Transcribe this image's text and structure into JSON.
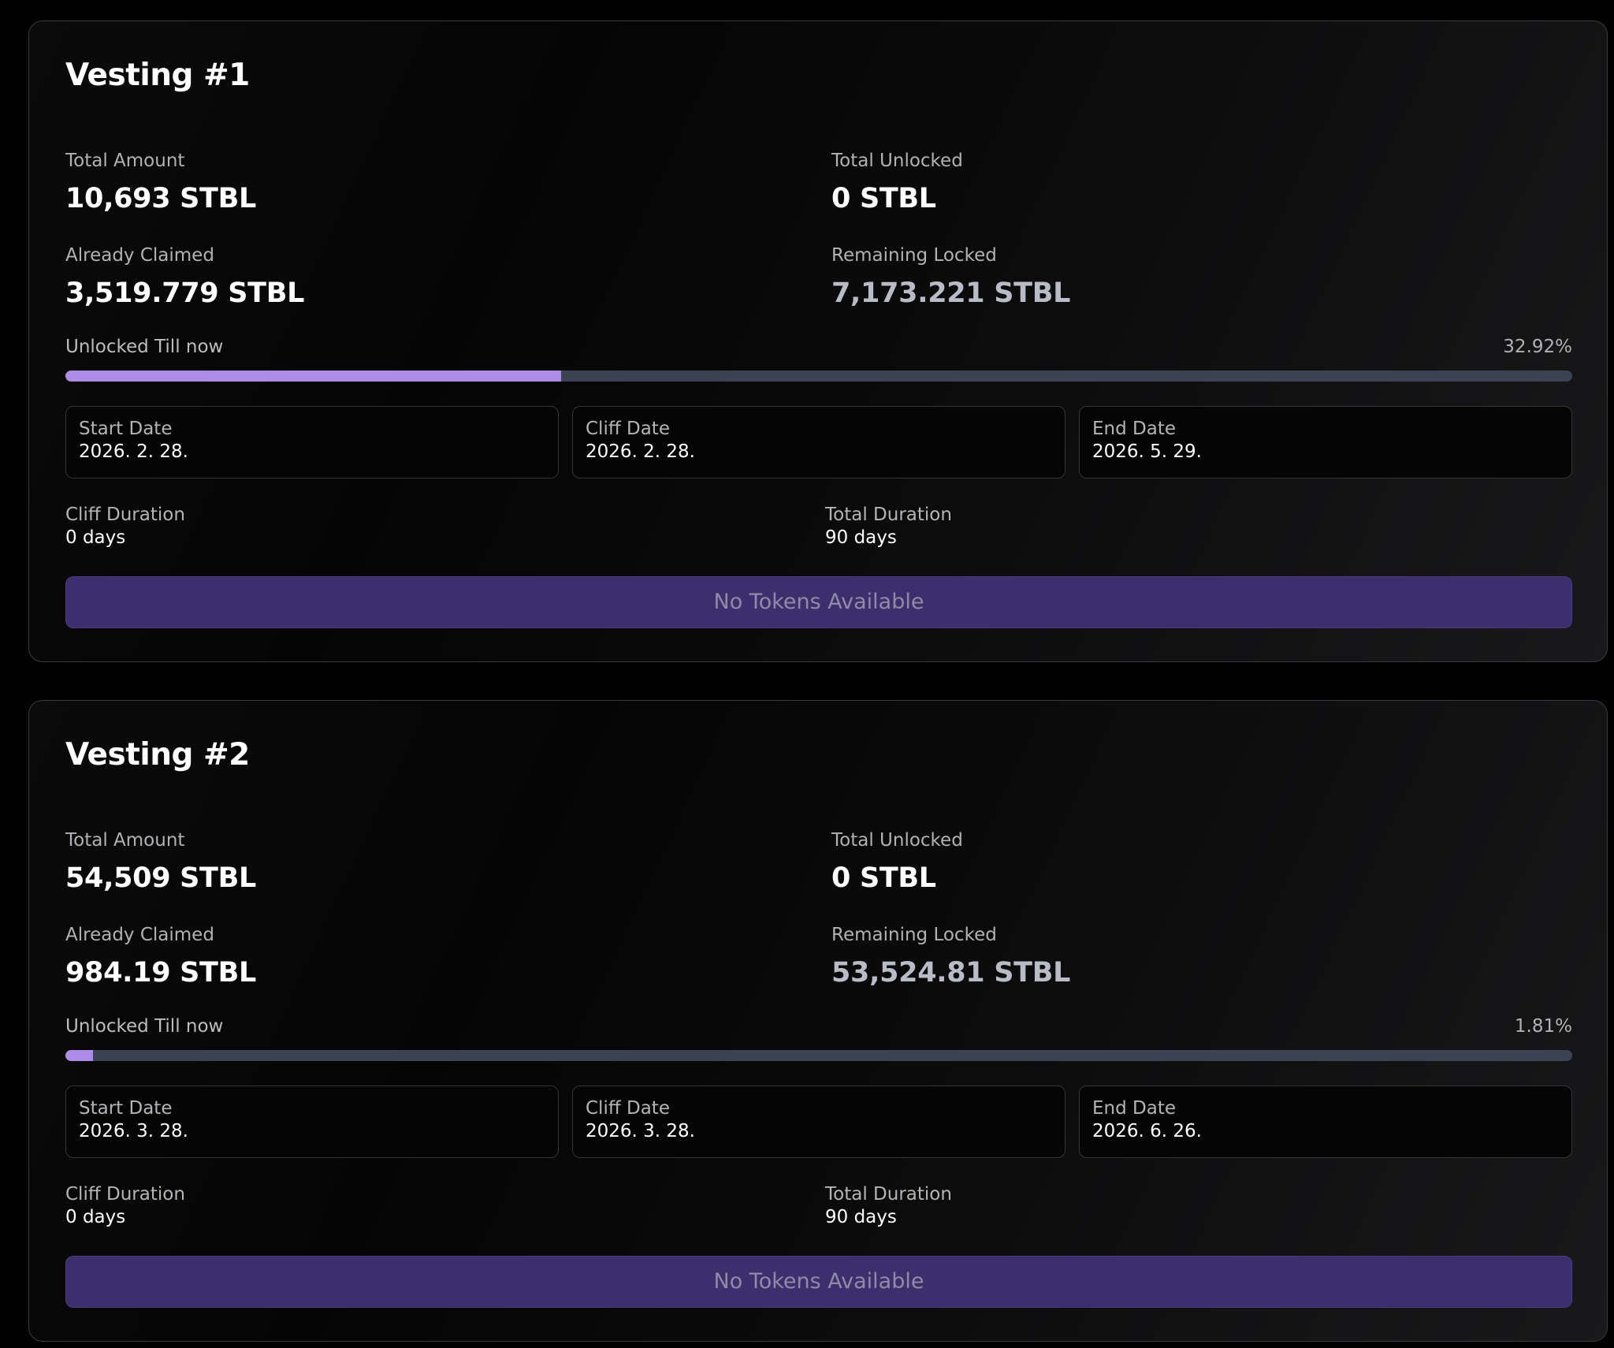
{
  "vestings": [
    {
      "title": "Vesting #1",
      "total_amount_label": "Total Amount",
      "total_amount": "10,693 STBL",
      "total_unlocked_label": "Total Unlocked",
      "total_unlocked": "0 STBL",
      "already_claimed_label": "Already Claimed",
      "already_claimed": "3,519.779 STBL",
      "remaining_locked_label": "Remaining Locked",
      "remaining_locked": "7,173.221 STBL",
      "progress_label": "Unlocked Till now",
      "progress_percent_text": "32.92%",
      "progress_fraction": 0.3292,
      "start_date_label": "Start Date",
      "start_date": "2026. 2. 28.",
      "cliff_date_label": "Cliff Date",
      "cliff_date": "2026. 2. 28.",
      "end_date_label": "End Date",
      "end_date": "2026. 5. 29.",
      "cliff_duration_label": "Cliff Duration",
      "cliff_duration": "0 days",
      "total_duration_label": "Total Duration",
      "total_duration": "90 days",
      "button_label": "No Tokens Available"
    },
    {
      "title": "Vesting #2",
      "total_amount_label": "Total Amount",
      "total_amount": "54,509 STBL",
      "total_unlocked_label": "Total Unlocked",
      "total_unlocked": "0 STBL",
      "already_claimed_label": "Already Claimed",
      "already_claimed": "984.19 STBL",
      "remaining_locked_label": "Remaining Locked",
      "remaining_locked": "53,524.81 STBL",
      "progress_label": "Unlocked Till now",
      "progress_percent_text": "1.81%",
      "progress_fraction": 0.0181,
      "start_date_label": "Start Date",
      "start_date": "2026. 3. 28.",
      "cliff_date_label": "Cliff Date",
      "cliff_date": "2026. 3. 28.",
      "end_date_label": "End Date",
      "end_date": "2026. 6. 26.",
      "cliff_duration_label": "Cliff Duration",
      "cliff_duration": "0 days",
      "total_duration_label": "Total Duration",
      "total_duration": "90 days",
      "button_label": "No Tokens Available"
    }
  ],
  "colors": {
    "background": "#020202",
    "card_border": "#3a3a3e",
    "progress_fill": "#ad8be8",
    "progress_track": "#3c4352",
    "button_background": "#3d2f6e",
    "button_text": "#8f8ba4",
    "muted_value": "#b9bbc7"
  }
}
